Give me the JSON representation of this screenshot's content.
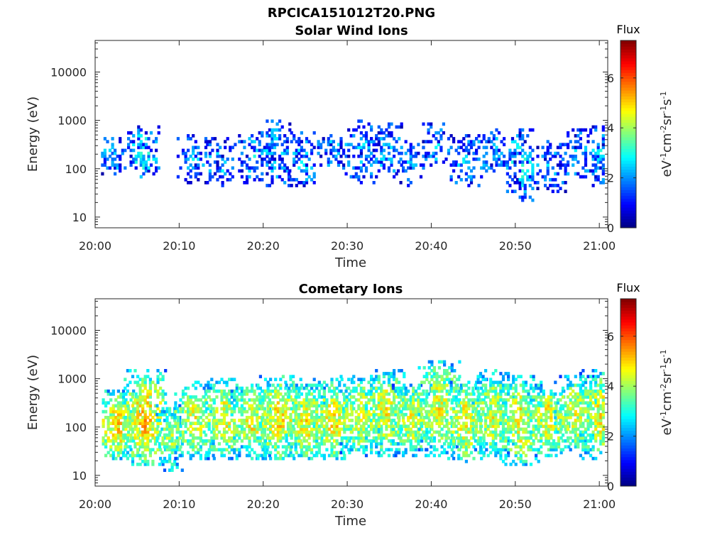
{
  "figure": {
    "title": "RPCICA151012T20.PNG"
  },
  "chart_data": [
    {
      "type": "heatmap",
      "title": "Solar Wind Ions",
      "xlabel": "Time",
      "ylabel": "Energy (eV)",
      "x_tick_labels": [
        "20:00",
        "20:10",
        "20:20",
        "20:30",
        "20:40",
        "20:50",
        "21:00"
      ],
      "x_range_minutes": [
        0,
        61
      ],
      "y_scale": "log",
      "y_tick_labels": [
        "10",
        "100",
        "1000",
        "10000"
      ],
      "y_range": [
        6,
        45000
      ],
      "colorbar": {
        "title": "Flux",
        "label": "eV-1cm-2sr-1s-1",
        "range": [
          0,
          7.5
        ],
        "tick_labels": [
          "0",
          "2",
          "4",
          "6"
        ],
        "colormap": "jet"
      },
      "bursts": [
        {
          "t": 2.0,
          "lo": 70,
          "hi": 450,
          "peak": 2.2,
          "density": 0.55,
          "width": 1.6
        },
        {
          "t": 5.6,
          "lo": 60,
          "hi": 800,
          "peak": 2.6,
          "density": 0.7,
          "width": 1.8
        },
        {
          "t": 11.5,
          "lo": 50,
          "hi": 500,
          "peak": 2.0,
          "density": 0.45,
          "width": 1.8
        },
        {
          "t": 15.0,
          "lo": 45,
          "hi": 450,
          "peak": 2.2,
          "density": 0.5,
          "width": 1.8
        },
        {
          "t": 18.8,
          "lo": 50,
          "hi": 600,
          "peak": 2.2,
          "density": 0.5,
          "width": 1.8
        },
        {
          "t": 21.5,
          "lo": 45,
          "hi": 1000,
          "peak": 2.3,
          "density": 0.55,
          "width": 1.8
        },
        {
          "t": 24.5,
          "lo": 40,
          "hi": 600,
          "peak": 2.2,
          "density": 0.5,
          "width": 1.6
        },
        {
          "t": 28.0,
          "lo": 100,
          "hi": 500,
          "peak": 2.3,
          "density": 0.5,
          "width": 1.6
        },
        {
          "t": 31.5,
          "lo": 50,
          "hi": 1000,
          "peak": 2.2,
          "density": 0.5,
          "width": 1.8
        },
        {
          "t": 34.5,
          "lo": 60,
          "hi": 900,
          "peak": 2.2,
          "density": 0.55,
          "width": 1.8
        },
        {
          "t": 37.5,
          "lo": 40,
          "hi": 500,
          "peak": 2.0,
          "density": 0.45,
          "width": 1.6
        },
        {
          "t": 40.5,
          "lo": 100,
          "hi": 900,
          "peak": 2.2,
          "density": 0.5,
          "width": 1.6
        },
        {
          "t": 44.0,
          "lo": 40,
          "hi": 500,
          "peak": 2.1,
          "density": 0.5,
          "width": 1.8
        },
        {
          "t": 47.0,
          "lo": 80,
          "hi": 650,
          "peak": 2.2,
          "density": 0.5,
          "width": 1.8
        },
        {
          "t": 50.5,
          "lo": 20,
          "hi": 700,
          "peak": 2.6,
          "density": 0.6,
          "width": 1.6
        },
        {
          "t": 54.0,
          "lo": 30,
          "hi": 400,
          "peak": 2.0,
          "density": 0.45,
          "width": 1.8
        },
        {
          "t": 56.8,
          "lo": 60,
          "hi": 700,
          "peak": 2.2,
          "density": 0.5,
          "width": 1.6
        },
        {
          "t": 60.0,
          "lo": 40,
          "hi": 800,
          "peak": 2.2,
          "density": 0.55,
          "width": 1.8
        }
      ]
    },
    {
      "type": "heatmap",
      "title": "Cometary Ions",
      "xlabel": "Time",
      "ylabel": "Energy (eV)",
      "x_tick_labels": [
        "20:00",
        "20:10",
        "20:20",
        "20:30",
        "20:40",
        "20:50",
        "21:00"
      ],
      "x_range_minutes": [
        0,
        61
      ],
      "y_scale": "log",
      "y_tick_labels": [
        "10",
        "100",
        "1000",
        "10000"
      ],
      "y_range": [
        6,
        45000
      ],
      "colorbar": {
        "title": "Flux",
        "label": "eV-1cm-2sr-1s-1",
        "range": [
          0,
          7.5
        ],
        "tick_labels": [
          "0",
          "2",
          "4",
          "6"
        ],
        "colormap": "jet"
      },
      "bursts": [
        {
          "t": 2.5,
          "lo": 20,
          "hi": 600,
          "peak": 4.8,
          "density": 0.85,
          "width": 2.6
        },
        {
          "t": 5.8,
          "lo": 15,
          "hi": 1500,
          "peak": 5.0,
          "density": 0.85,
          "width": 2.4
        },
        {
          "t": 8.8,
          "lo": 12,
          "hi": 300,
          "peak": 4.0,
          "density": 0.75,
          "width": 1.6
        },
        {
          "t": 11.8,
          "lo": 20,
          "hi": 900,
          "peak": 4.4,
          "density": 0.8,
          "width": 2.4
        },
        {
          "t": 15.2,
          "lo": 20,
          "hi": 1000,
          "peak": 4.5,
          "density": 0.8,
          "width": 2.4
        },
        {
          "t": 18.5,
          "lo": 20,
          "hi": 800,
          "peak": 4.6,
          "density": 0.8,
          "width": 2.4
        },
        {
          "t": 21.8,
          "lo": 20,
          "hi": 1200,
          "peak": 4.8,
          "density": 0.85,
          "width": 2.6
        },
        {
          "t": 25.0,
          "lo": 20,
          "hi": 800,
          "peak": 4.6,
          "density": 0.8,
          "width": 2.4
        },
        {
          "t": 28.3,
          "lo": 20,
          "hi": 1000,
          "peak": 4.7,
          "density": 0.85,
          "width": 2.4
        },
        {
          "t": 31.5,
          "lo": 25,
          "hi": 1200,
          "peak": 4.4,
          "density": 0.8,
          "width": 2.4
        },
        {
          "t": 34.5,
          "lo": 25,
          "hi": 1500,
          "peak": 4.6,
          "density": 0.8,
          "width": 2.4
        },
        {
          "t": 37.7,
          "lo": 25,
          "hi": 800,
          "peak": 4.5,
          "density": 0.8,
          "width": 2.4
        },
        {
          "t": 40.8,
          "lo": 25,
          "hi": 2500,
          "peak": 4.5,
          "density": 0.8,
          "width": 2.4
        },
        {
          "t": 44.0,
          "lo": 18,
          "hi": 1000,
          "peak": 4.6,
          "density": 0.8,
          "width": 2.4
        },
        {
          "t": 47.2,
          "lo": 25,
          "hi": 1500,
          "peak": 4.4,
          "density": 0.8,
          "width": 2.4
        },
        {
          "t": 50.5,
          "lo": 15,
          "hi": 1200,
          "peak": 4.6,
          "density": 0.8,
          "width": 2.4
        },
        {
          "t": 53.8,
          "lo": 25,
          "hi": 800,
          "peak": 4.6,
          "density": 0.8,
          "width": 2.4
        },
        {
          "t": 57.0,
          "lo": 30,
          "hi": 1200,
          "peak": 4.4,
          "density": 0.8,
          "width": 2.4
        },
        {
          "t": 60.0,
          "lo": 20,
          "hi": 1500,
          "peak": 4.6,
          "density": 0.8,
          "width": 2.4
        }
      ]
    }
  ]
}
